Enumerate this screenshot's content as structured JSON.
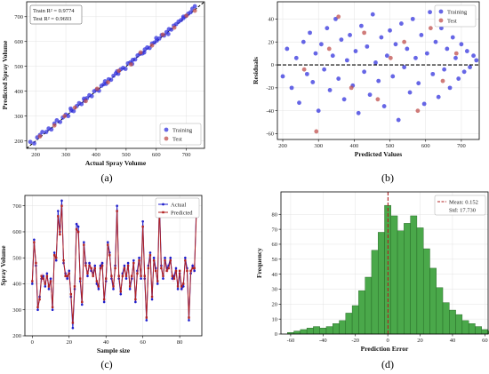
{
  "colors": {
    "training": "#3333dd",
    "test": "#c0504d",
    "actual": "#1f1fcc",
    "predicted": "#b22222",
    "hist": "#4aa84a",
    "hist_edge": "#1e5e1e",
    "band": "#f4c6dc",
    "zero_line": "#000000",
    "mean_line": "#b22222"
  },
  "panels": [
    {
      "label": "(a)"
    },
    {
      "label": "(b)"
    },
    {
      "label": "(c)"
    },
    {
      "label": "(d)"
    }
  ],
  "chart_data": [
    {
      "type": "scatter",
      "xlabel": "Actual Spray Volume",
      "ylabel": "Predicted Spray Volume",
      "xlim": [
        170,
        760
      ],
      "ylim": [
        170,
        760
      ],
      "xticks": [
        200,
        300,
        400,
        500,
        600,
        700
      ],
      "yticks": [
        200,
        300,
        400,
        500,
        600,
        700
      ],
      "annotation": [
        "Train R² = 0.9774",
        "Test R² = 0.9693"
      ],
      "legend": "bottom-right",
      "reference_line": [
        [
          170,
          170
        ],
        [
          760,
          760
        ]
      ],
      "series": [
        {
          "name": "Training",
          "points": [
            [
              182,
              196
            ],
            [
              195,
              190
            ],
            [
              205,
              214
            ],
            [
              214,
              224
            ],
            [
              222,
              236
            ],
            [
              235,
              236
            ],
            [
              243,
              250
            ],
            [
              252,
              246
            ],
            [
              262,
              270
            ],
            [
              270,
              283
            ],
            [
              281,
              276
            ],
            [
              290,
              294
            ],
            [
              300,
              306
            ],
            [
              308,
              300
            ],
            [
              318,
              322
            ],
            [
              326,
              320
            ],
            [
              336,
              340
            ],
            [
              344,
              352
            ],
            [
              352,
              348
            ],
            [
              362,
              362
            ],
            [
              370,
              372
            ],
            [
              378,
              384
            ],
            [
              386,
              380
            ],
            [
              394,
              400
            ],
            [
              402,
              406
            ],
            [
              410,
              402
            ],
            [
              418,
              422
            ],
            [
              426,
              428
            ],
            [
              434,
              430
            ],
            [
              442,
              448
            ],
            [
              450,
              446
            ],
            [
              458,
              462
            ],
            [
              466,
              472
            ],
            [
              474,
              470
            ],
            [
              482,
              488
            ],
            [
              490,
              494
            ],
            [
              498,
              490
            ],
            [
              506,
              512
            ],
            [
              514,
              516
            ],
            [
              522,
              526
            ],
            [
              530,
              528
            ],
            [
              538,
              544
            ],
            [
              546,
              550
            ],
            [
              554,
              552
            ],
            [
              562,
              568
            ],
            [
              570,
              576
            ],
            [
              578,
              574
            ],
            [
              586,
              592
            ],
            [
              594,
              596
            ],
            [
              602,
              604
            ],
            [
              610,
              612
            ],
            [
              618,
              626
            ],
            [
              626,
              624
            ],
            [
              634,
              638
            ],
            [
              642,
              650
            ],
            [
              650,
              648
            ],
            [
              658,
              664
            ],
            [
              666,
              670
            ],
            [
              674,
              680
            ],
            [
              682,
              686
            ],
            [
              690,
              694
            ],
            [
              698,
              702
            ],
            [
              706,
              712
            ],
            [
              714,
              718
            ],
            [
              720,
              732
            ],
            [
              728,
              742
            ],
            [
              316,
              330
            ],
            [
              360,
              370
            ],
            [
              430,
              440
            ],
            [
              470,
              480
            ],
            [
              520,
              510
            ],
            [
              560,
              556
            ],
            [
              600,
              614
            ],
            [
              640,
              630
            ],
            [
              690,
              700
            ]
          ]
        },
        {
          "name": "Test",
          "points": [
            [
              214,
              218
            ],
            [
              262,
              262
            ],
            [
              296,
              300
            ],
            [
              330,
              334
            ],
            [
              366,
              360
            ],
            [
              404,
              410
            ],
            [
              440,
              436
            ],
            [
              476,
              482
            ],
            [
              516,
              508
            ],
            [
              548,
              556
            ],
            [
              586,
              584
            ],
            [
              622,
              628
            ],
            [
              660,
              656
            ],
            [
              700,
              704
            ],
            [
              728,
              724
            ]
          ]
        }
      ]
    },
    {
      "type": "scatter",
      "xlabel": "Predicted Values",
      "ylabel": "Residuals",
      "xlim": [
        185,
        750
      ],
      "ylim": [
        -65,
        55
      ],
      "xticks": [
        200,
        300,
        400,
        500,
        600,
        700
      ],
      "yticks": [
        -60,
        -40,
        -20,
        0,
        20,
        40
      ],
      "legend": "top-right",
      "reference_line_y": 0,
      "series": [
        {
          "name": "Training",
          "points": [
            [
              200,
              -10
            ],
            [
              212,
              14
            ],
            [
              225,
              -20
            ],
            [
              238,
              6
            ],
            [
              246,
              -33
            ],
            [
              258,
              20
            ],
            [
              268,
              -8
            ],
            [
              276,
              28
            ],
            [
              284,
              -15
            ],
            [
              292,
              10
            ],
            [
              300,
              -40
            ],
            [
              308,
              18
            ],
            [
              316,
              -4
            ],
            [
              324,
              32
            ],
            [
              332,
              -22
            ],
            [
              340,
              8
            ],
            [
              348,
              40
            ],
            [
              356,
              -12
            ],
            [
              364,
              22
            ],
            [
              372,
              -30
            ],
            [
              380,
              4
            ],
            [
              388,
              26
            ],
            [
              396,
              -18
            ],
            [
              404,
              12
            ],
            [
              412,
              -42
            ],
            [
              420,
              34
            ],
            [
              428,
              -6
            ],
            [
              436,
              16
            ],
            [
              444,
              -26
            ],
            [
              452,
              44
            ],
            [
              460,
              2
            ],
            [
              468,
              -14
            ],
            [
              476,
              24
            ],
            [
              484,
              -36
            ],
            [
              492,
              8
            ],
            [
              500,
              30
            ],
            [
              508,
              -10
            ],
            [
              516,
              18
            ],
            [
              524,
              -48
            ],
            [
              532,
              36
            ],
            [
              540,
              -2
            ],
            [
              548,
              14
            ],
            [
              556,
              -24
            ],
            [
              564,
              40
            ],
            [
              572,
              6
            ],
            [
              580,
              -16
            ],
            [
              588,
              26
            ],
            [
              596,
              -34
            ],
            [
              604,
              10
            ],
            [
              612,
              46
            ],
            [
              620,
              -8
            ],
            [
              628,
              20
            ],
            [
              636,
              -28
            ],
            [
              644,
              32
            ],
            [
              652,
              -4
            ],
            [
              660,
              14
            ],
            [
              668,
              -20
            ],
            [
              676,
              24
            ],
            [
              684,
              6
            ],
            [
              692,
              -12
            ],
            [
              700,
              18
            ],
            [
              708,
              -6
            ],
            [
              716,
              12
            ],
            [
              724,
              -2
            ],
            [
              734,
              8
            ],
            [
              742,
              4
            ]
          ]
        },
        {
          "name": "Test",
          "points": [
            [
              260,
              -4
            ],
            [
              294,
              -58
            ],
            [
              330,
              14
            ],
            [
              356,
              42
            ],
            [
              392,
              -20
            ],
            [
              428,
              28
            ],
            [
              466,
              -30
            ],
            [
              502,
              6
            ],
            [
              540,
              20
            ],
            [
              578,
              -40
            ],
            [
              614,
              32
            ],
            [
              648,
              -14
            ],
            [
              686,
              10
            ],
            [
              712,
              36
            ]
          ]
        }
      ]
    },
    {
      "type": "line",
      "xlabel": "Sample size",
      "ylabel": "Spray Volume",
      "xlim": [
        -4,
        92
      ],
      "ylim": [
        200,
        740
      ],
      "xticks": [
        0,
        20,
        40,
        60,
        80
      ],
      "yticks": [
        200,
        300,
        400,
        500,
        600,
        700
      ],
      "legend": "top-right",
      "x": [
        0,
        1,
        2,
        3,
        4,
        5,
        6,
        7,
        8,
        9,
        10,
        11,
        12,
        13,
        14,
        15,
        16,
        17,
        18,
        19,
        20,
        21,
        22,
        23,
        24,
        25,
        26,
        27,
        28,
        29,
        30,
        31,
        32,
        33,
        34,
        35,
        36,
        37,
        38,
        39,
        40,
        41,
        42,
        43,
        44,
        45,
        46,
        47,
        48,
        49,
        50,
        51,
        52,
        53,
        54,
        55,
        56,
        57,
        58,
        59,
        60,
        61,
        62,
        63,
        64,
        65,
        66,
        67,
        68,
        69,
        70,
        71,
        72,
        73,
        74,
        75,
        76,
        77,
        78,
        79,
        80,
        81,
        82,
        83,
        84,
        85,
        86,
        87,
        88,
        89
      ],
      "series": [
        {
          "name": "Actual",
          "values": [
            400,
            570,
            470,
            300,
            350,
            420,
            430,
            390,
            440,
            380,
            420,
            300,
            520,
            490,
            680,
            600,
            720,
            480,
            440,
            420,
            450,
            350,
            230,
            380,
            630,
            620,
            410,
            320,
            560,
            480,
            430,
            480,
            450,
            440,
            470,
            400,
            380,
            470,
            480,
            330,
            410,
            560,
            520,
            420,
            380,
            470,
            700,
            420,
            360,
            440,
            470,
            420,
            480,
            380,
            420,
            490,
            330,
            450,
            500,
            420,
            640,
            420,
            260,
            470,
            520,
            340,
            500,
            460,
            400,
            720,
            470,
            420,
            500,
            460,
            470,
            500,
            420,
            430,
            460,
            380,
            440,
            380,
            390,
            500,
            460,
            260,
            440,
            470,
            450,
            680
          ]
        },
        {
          "name": "Predicted",
          "values": [
            410,
            560,
            480,
            310,
            340,
            430,
            420,
            400,
            430,
            390,
            410,
            310,
            510,
            500,
            660,
            590,
            700,
            490,
            430,
            430,
            440,
            360,
            250,
            390,
            610,
            600,
            420,
            330,
            550,
            470,
            440,
            470,
            460,
            430,
            460,
            410,
            390,
            460,
            470,
            340,
            420,
            550,
            510,
            430,
            390,
            460,
            680,
            430,
            370,
            430,
            460,
            430,
            470,
            390,
            430,
            480,
            340,
            440,
            490,
            430,
            620,
            430,
            270,
            460,
            510,
            350,
            490,
            450,
            410,
            700,
            460,
            430,
            490,
            450,
            460,
            490,
            430,
            420,
            450,
            390,
            450,
            390,
            400,
            490,
            450,
            270,
            450,
            460,
            460,
            660
          ]
        }
      ]
    },
    {
      "type": "bar",
      "xlabel": "Prediction Error",
      "ylabel": "Frequency",
      "xlim": [
        -66,
        62
      ],
      "ylim": [
        0,
        95
      ],
      "xticks": [
        -60,
        -40,
        -20,
        0,
        20,
        40,
        60
      ],
      "yticks": [
        0,
        10,
        20,
        30,
        40,
        50,
        60,
        70,
        80
      ],
      "legend": "top-right",
      "bin_width": 4,
      "bin_start": -62,
      "values": [
        1,
        2,
        3,
        4,
        5,
        4,
        5,
        7,
        9,
        14,
        19,
        29,
        38,
        56,
        68,
        86,
        79,
        69,
        74,
        79,
        71,
        57,
        44,
        31,
        21,
        16,
        13,
        9,
        7,
        5,
        3,
        2,
        2,
        1,
        1
      ],
      "mean_line_x": 0.152,
      "legend_entries": [
        "Mean: 0.152",
        "Std: 17.730"
      ]
    }
  ]
}
